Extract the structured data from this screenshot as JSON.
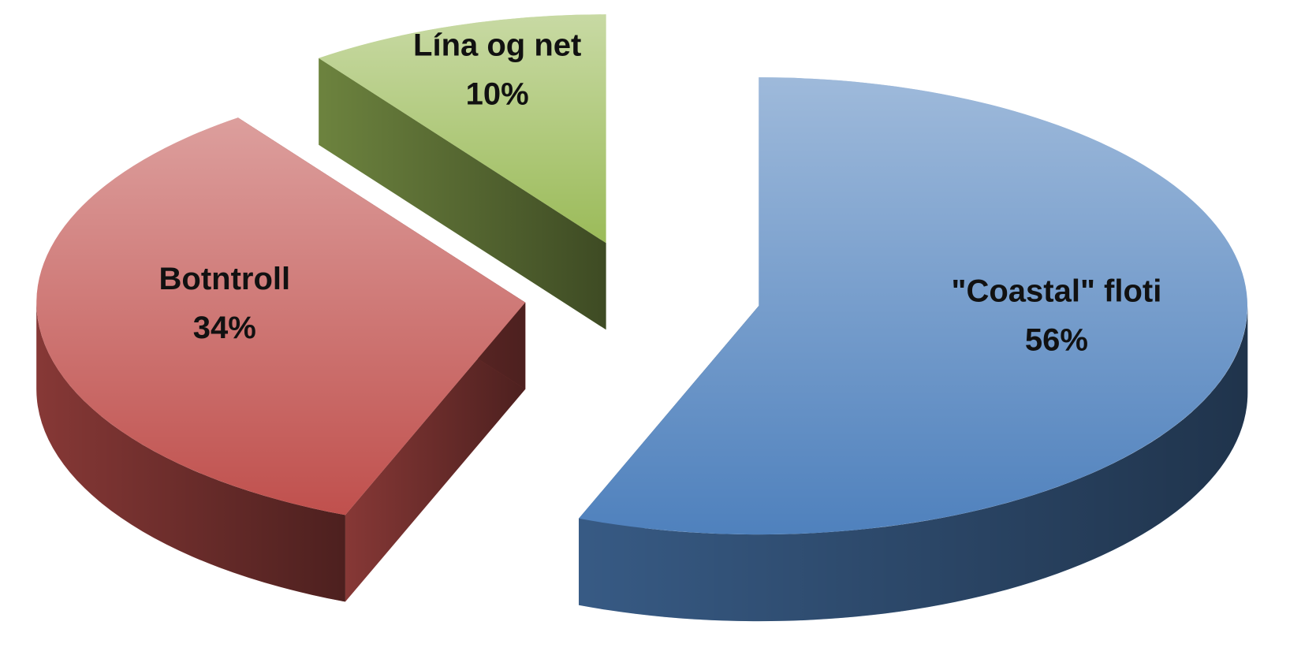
{
  "chart_data": {
    "type": "pie",
    "categories": [
      "\"Coastal\" floti",
      "Botntroll",
      "Lína og net"
    ],
    "values": [
      56,
      34,
      10
    ],
    "value_labels": [
      "56%",
      "34%",
      "10%"
    ],
    "colors": [
      "#4f81bd",
      "#c0504d",
      "#9bbb59"
    ]
  }
}
